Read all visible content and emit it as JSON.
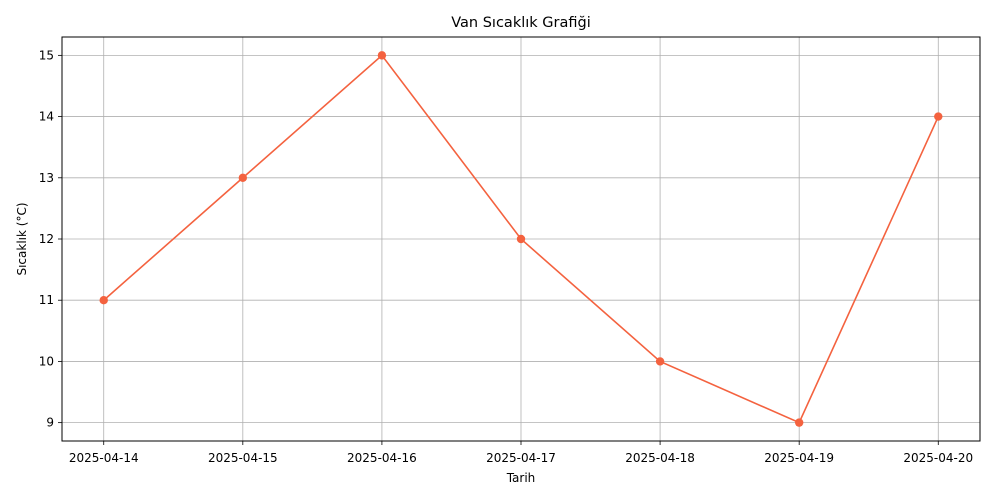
{
  "chart_data": {
    "type": "line",
    "title": "Van Sıcaklık Grafiği",
    "xlabel": "Tarih",
    "ylabel": "Sıcaklık (°C)",
    "x": [
      "2025-04-14",
      "2025-04-15",
      "2025-04-16",
      "2025-04-17",
      "2025-04-18",
      "2025-04-19",
      "2025-04-20"
    ],
    "series": [
      {
        "values": [
          11,
          13,
          15,
          12,
          10,
          9,
          14
        ],
        "color": "#f4623f",
        "marker": "circle"
      }
    ],
    "yticks": [
      9,
      10,
      11,
      12,
      13,
      14,
      15
    ],
    "ylim": [
      8.7,
      15.3
    ],
    "grid": true
  }
}
